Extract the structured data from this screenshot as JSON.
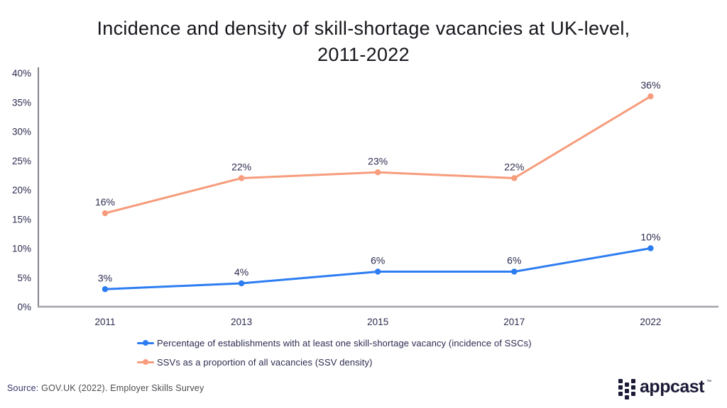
{
  "page": {
    "title_lines": [
      "Incidence and density of skill-shortage vacancies at UK-level,",
      "2011-2022"
    ],
    "source_label": "Source:",
    "source_text": "GOV.UK (2022). Employer Skills Survey",
    "logo_text": "appcast",
    "logo_trademark": "™"
  },
  "chart_data": {
    "type": "line",
    "title": "Incidence and density of skill-shortage vacancies at UK-level, 2011-2022",
    "categories": [
      "2011",
      "2013",
      "2015",
      "2017",
      "2022"
    ],
    "series": [
      {
        "name": "Percentage of establishments with at least one skill-shortage vacancy (incidence of SSCs)",
        "color": "#2d7df2",
        "values": [
          3,
          4,
          6,
          6,
          10
        ],
        "labels": [
          "3%",
          "4%",
          "6%",
          "6%",
          "10%"
        ]
      },
      {
        "name": "SSVs as a proportion of all vacancies (SSV density)",
        "color": "#f79c7c",
        "values": [
          16,
          22,
          23,
          22,
          36
        ],
        "labels": [
          "16%",
          "22%",
          "23%",
          "22%",
          "36%"
        ]
      }
    ],
    "ylim": [
      0,
      40
    ],
    "ytick_step": 5,
    "ytick_labels": [
      "0%",
      "5%",
      "10%",
      "15%",
      "20%",
      "25%",
      "30%",
      "35%",
      "40%"
    ],
    "grid": false,
    "legend_position": "bottom",
    "colors": {
      "y_axis": "#82828c",
      "x_axis": "#a2a2aa",
      "label_text": "#2b2b50"
    }
  }
}
